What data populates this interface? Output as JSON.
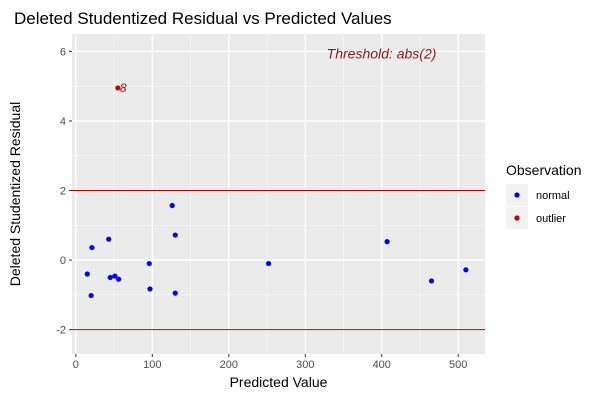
{
  "chart_data": {
    "type": "scatter",
    "title": "Deleted Studentized Residual vs Predicted Values",
    "xlabel": "Predicted Value",
    "ylabel": "Deleted Studentized Residual",
    "xlim": [
      -5,
      535
    ],
    "ylim": [
      -2.7,
      6.5
    ],
    "x_ticks": [
      0,
      100,
      200,
      300,
      400,
      500
    ],
    "y_ticks": [
      -2,
      0,
      2,
      4,
      6
    ],
    "grid": true,
    "legend": {
      "title": "Observation",
      "position": "right"
    },
    "thresholds": [
      2,
      -2
    ],
    "threshold_color": "#cc0000",
    "annotation": "Threshold: abs(2)",
    "series": [
      {
        "name": "normal",
        "color": "#0000ff",
        "points": [
          [
            15,
            -0.4
          ],
          [
            20,
            -1.02
          ],
          [
            21,
            0.36
          ],
          [
            43,
            0.6
          ],
          [
            45,
            -0.5
          ],
          [
            51,
            -0.46
          ],
          [
            56,
            -0.55
          ],
          [
            96,
            -0.1
          ],
          [
            97,
            -0.83
          ],
          [
            126,
            1.57
          ],
          [
            130,
            0.72
          ],
          [
            130,
            -0.95
          ],
          [
            252,
            -0.1
          ],
          [
            407,
            0.53
          ],
          [
            465,
            -0.6
          ],
          [
            510,
            -0.28
          ]
        ]
      },
      {
        "name": "outlier",
        "color": "#cc0000",
        "points": [
          [
            55,
            4.95
          ]
        ],
        "labels": [
          "8"
        ]
      }
    ]
  }
}
